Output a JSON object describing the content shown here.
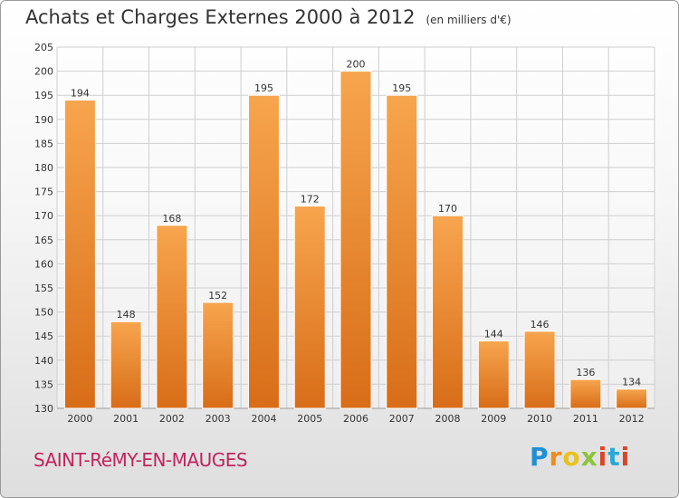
{
  "chart_data": {
    "type": "bar",
    "title": "Achats et Charges Externes 2000 à 2012",
    "subtitle": "(en milliers d'€)",
    "categories": [
      "2000",
      "2001",
      "2002",
      "2003",
      "2004",
      "2005",
      "2006",
      "2007",
      "2008",
      "2009",
      "2010",
      "2011",
      "2012"
    ],
    "values": [
      194,
      148,
      168,
      152,
      195,
      172,
      200,
      195,
      170,
      144,
      146,
      136,
      134
    ],
    "ylim": [
      130,
      205
    ],
    "yticks": [
      130,
      135,
      140,
      145,
      150,
      155,
      160,
      165,
      170,
      175,
      180,
      185,
      190,
      195,
      200,
      205
    ],
    "grid": true,
    "colors": {
      "bar_light": "#f7a54e",
      "bar_dark": "#d86d18",
      "grid": "#cfcfcf",
      "axis_text": "#333333"
    }
  },
  "footer": {
    "place_name": "SAINT-RéMY-EN-MAUGES",
    "logo_text": "Proxiti"
  }
}
